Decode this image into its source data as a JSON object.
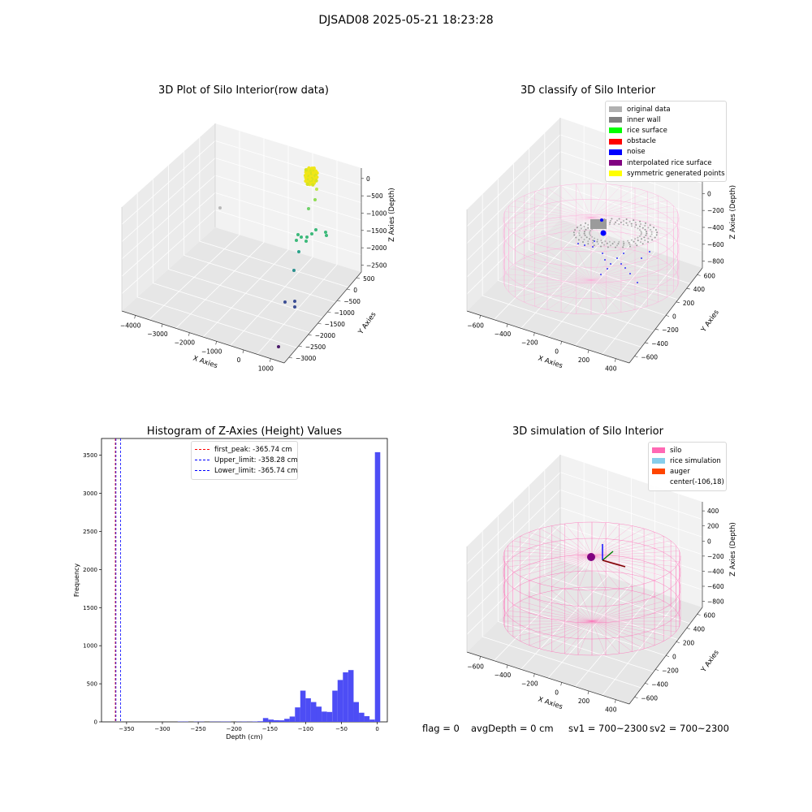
{
  "suptitle": "DJSAD08 2025-05-21 18:23:28",
  "panels": {
    "raw": {
      "title": "3D Plot of Silo Interior(row data)",
      "x_label": "X Axies",
      "y_label": "Y Axies",
      "z_label": "Z Axies (Depth)",
      "x_ticks": [
        "−4000",
        "−3000",
        "−2000",
        "−1000",
        "0",
        "1000"
      ],
      "y_ticks": [
        "500",
        "0",
        "−500",
        "−1000",
        "−1500",
        "−2000",
        "−2500",
        "−3000"
      ],
      "z_ticks": [
        "0",
        "−500",
        "−1000",
        "−1500",
        "−2000",
        "−2500"
      ]
    },
    "classify": {
      "title": "3D classify of Silo Interior",
      "x_label": "X Axies",
      "y_label": "Y Axies",
      "z_label": "Z Axies (Depth)",
      "x_ticks": [
        "−600",
        "−400",
        "−200",
        "0",
        "200",
        "400"
      ],
      "y_ticks": [
        "600",
        "400",
        "200",
        "0",
        "−200",
        "−400",
        "−600"
      ],
      "z_ticks": [
        "200",
        "0",
        "−200",
        "−400",
        "−600",
        "−800"
      ],
      "legend": [
        {
          "label": "original data",
          "color": "#b0b0b0"
        },
        {
          "label": "inner wall",
          "color": "#808080"
        },
        {
          "label": "rice surface",
          "color": "#00ff00"
        },
        {
          "label": "obstacle",
          "color": "#ff0000"
        },
        {
          "label": "noise",
          "color": "#0000ff"
        },
        {
          "label": "interpolated rice surface",
          "color": "#800080"
        },
        {
          "label": "symmetric generated points",
          "color": "#ffff00"
        }
      ]
    },
    "simulation": {
      "title": "3D simulation of Silo Interior",
      "x_label": "X Axies",
      "y_label": "Y Axies",
      "z_label": "Z Axies (Depth)",
      "x_ticks": [
        "−600",
        "−400",
        "−200",
        "0",
        "200",
        "400"
      ],
      "y_ticks": [
        "600",
        "400",
        "200",
        "0",
        "−200",
        "−400",
        "−600"
      ],
      "z_ticks": [
        "400",
        "200",
        "0",
        "−200",
        "−400",
        "−600",
        "−800"
      ],
      "legend": [
        {
          "label": "silo",
          "color": "#ff69b4"
        },
        {
          "label": "rice simulation",
          "color": "#87ceeb"
        },
        {
          "label": "auger",
          "color": "#ff4500"
        },
        {
          "label": "center(-106,18)",
          "color": ""
        }
      ]
    }
  },
  "chart_data": [
    {
      "type": "scatter",
      "title": "3D Plot of Silo Interior(row data)",
      "xlabel": "X Axies",
      "ylabel": "Y Axies",
      "zlabel": "Z Axies (Depth)",
      "xlim": [
        -4300,
        1600
      ],
      "ylim": [
        -3200,
        600
      ],
      "zlim": [
        -2800,
        100
      ],
      "note": "3D scatter of raw depth points colored by depth"
    },
    {
      "type": "scatter",
      "title": "3D classify of Silo Interior",
      "xlabel": "X Axies",
      "ylabel": "Y Axies",
      "zlabel": "Z Axies (Depth)",
      "xlim": [
        -700,
        500
      ],
      "ylim": [
        -650,
        650
      ],
      "zlim": [
        -900,
        280
      ],
      "series": [
        {
          "name": "original data"
        },
        {
          "name": "inner wall"
        },
        {
          "name": "rice surface"
        },
        {
          "name": "obstacle"
        },
        {
          "name": "noise"
        },
        {
          "name": "interpolated rice surface"
        },
        {
          "name": "symmetric generated points"
        }
      ]
    },
    {
      "type": "bar",
      "title": "Histogram of Z-Axies (Height) Values",
      "xlabel": "Depth (cm)",
      "ylabel": "Frequency",
      "xlim": [
        -385,
        14
      ],
      "ylim": [
        0,
        3720
      ],
      "x_ticks": [
        -350,
        -300,
        -250,
        -200,
        -150,
        -100,
        -50,
        0
      ],
      "x_tick_labels": [
        "−350",
        "−300",
        "−250",
        "−200",
        "−150",
        "−100",
        "−50",
        "0"
      ],
      "y_ticks": [
        0,
        500,
        1000,
        1500,
        2000,
        2500,
        3000,
        3500
      ],
      "bin_width": 7.44,
      "bins": [
        {
          "x": -275,
          "count": 4
        },
        {
          "x": -267.5,
          "count": 4
        },
        {
          "x": -252.6,
          "count": 3
        },
        {
          "x": -245.2,
          "count": 3
        },
        {
          "x": -230.3,
          "count": 3
        },
        {
          "x": -222.9,
          "count": 3
        },
        {
          "x": -215.4,
          "count": 4
        },
        {
          "x": -208.0,
          "count": 4
        },
        {
          "x": -193.1,
          "count": 3
        },
        {
          "x": -185.7,
          "count": 4
        },
        {
          "x": -178.2,
          "count": 3
        },
        {
          "x": -170.8,
          "count": 5
        },
        {
          "x": -163.3,
          "count": 8
        },
        {
          "x": -155.9,
          "count": 50
        },
        {
          "x": -148.4,
          "count": 30
        },
        {
          "x": -141.0,
          "count": 22
        },
        {
          "x": -133.6,
          "count": 20
        },
        {
          "x": -126.1,
          "count": 40
        },
        {
          "x": -118.7,
          "count": 70
        },
        {
          "x": -111.2,
          "count": 190
        },
        {
          "x": -103.8,
          "count": 410
        },
        {
          "x": -96.4,
          "count": 310
        },
        {
          "x": -88.9,
          "count": 260
        },
        {
          "x": -81.5,
          "count": 200
        },
        {
          "x": -74.0,
          "count": 135
        },
        {
          "x": -66.6,
          "count": 130
        },
        {
          "x": -59.1,
          "count": 410
        },
        {
          "x": -51.7,
          "count": 550
        },
        {
          "x": -44.3,
          "count": 650
        },
        {
          "x": -36.8,
          "count": 680
        },
        {
          "x": -29.4,
          "count": 260
        },
        {
          "x": -21.9,
          "count": 120
        },
        {
          "x": -14.5,
          "count": 75
        },
        {
          "x": -7.1,
          "count": 30
        },
        {
          "x": 0.4,
          "count": 3540
        }
      ],
      "vlines": [
        {
          "label": "first_peak: -365.74 cm",
          "x": -365.74,
          "color": "#ff0000"
        },
        {
          "label": "Upper_limit: -358.28 cm",
          "x": -358.28,
          "color": "#0000ff"
        },
        {
          "label": "Lower_limit: -365.74 cm",
          "x": -365.74,
          "color": "#0000ff"
        }
      ],
      "bar_color": "#4d4df5"
    },
    {
      "type": "scatter",
      "title": "3D simulation of Silo Interior",
      "xlabel": "X Axies",
      "ylabel": "Y Axies",
      "zlabel": "Z Axies (Depth)",
      "series": [
        {
          "name": "silo"
        },
        {
          "name": "rice simulation"
        },
        {
          "name": "auger"
        },
        {
          "name": "center(-106,18)"
        }
      ]
    }
  ],
  "status": {
    "flag": "flag = 0",
    "avg_depth": "avgDepth = 0 cm",
    "sv1": "sv1 = 700~2300",
    "sv2": "sv2 = 700~2300"
  },
  "colors": {
    "pane_light": "#f2f2f2",
    "pane_mid": "#e6e6e6",
    "pane_dark": "#ebebeb",
    "silo_pink": "#ff69b4",
    "hist_bar": "#4d4df5"
  }
}
